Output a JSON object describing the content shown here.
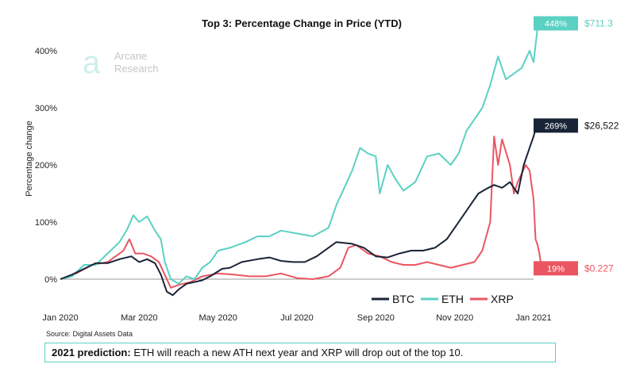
{
  "colors": {
    "btc": "#1a2437",
    "eth": "#5ad1c3",
    "xrp": "#eb5562",
    "axis": "#999999"
  },
  "logo": {
    "line1": "Arcane",
    "line2": "Research"
  },
  "source": "Source: Digital Assets Data",
  "prediction": {
    "bold": "2021 prediction:",
    "text": " ETH will reach a new ATH next year and XRP will drop out of the top 10."
  },
  "chart_data": {
    "type": "line",
    "title": "Top 3: Percentage Change in Price (YTD)",
    "ylabel": "Percentage change",
    "ylim": [
      -30,
      460
    ],
    "yticks": [
      0,
      100,
      200,
      300,
      400
    ],
    "ytick_labels": [
      "0%",
      "100%",
      "200%",
      "300%",
      "400%"
    ],
    "xlim": [
      0,
      12
    ],
    "xticks": [
      0,
      2,
      4,
      6,
      8,
      10,
      12
    ],
    "xtick_labels": [
      "Jan 2020",
      "Mar 2020",
      "May 2020",
      "Jul 2020",
      "Sep 2020",
      "Nov 2020",
      "Jan 2021"
    ],
    "legend": "bottom-right",
    "series": [
      {
        "name": "BTC",
        "key": "btc",
        "end_pct": "269%",
        "end_price": "$26,522",
        "end_value": 269,
        "points": [
          [
            0,
            0
          ],
          [
            0.3,
            8
          ],
          [
            0.6,
            18
          ],
          [
            0.9,
            28
          ],
          [
            1.2,
            28
          ],
          [
            1.5,
            35
          ],
          [
            1.8,
            40
          ],
          [
            2.0,
            30
          ],
          [
            2.2,
            35
          ],
          [
            2.4,
            28
          ],
          [
            2.55,
            8
          ],
          [
            2.7,
            -22
          ],
          [
            2.85,
            -28
          ],
          [
            3.0,
            -18
          ],
          [
            3.2,
            -8
          ],
          [
            3.4,
            -5
          ],
          [
            3.6,
            -2
          ],
          [
            3.8,
            5
          ],
          [
            4.1,
            18
          ],
          [
            4.3,
            20
          ],
          [
            4.6,
            30
          ],
          [
            5.0,
            35
          ],
          [
            5.3,
            38
          ],
          [
            5.6,
            32
          ],
          [
            5.9,
            30
          ],
          [
            6.2,
            30
          ],
          [
            6.5,
            40
          ],
          [
            6.8,
            55
          ],
          [
            7.0,
            65
          ],
          [
            7.4,
            62
          ],
          [
            7.7,
            55
          ],
          [
            8.0,
            40
          ],
          [
            8.3,
            38
          ],
          [
            8.6,
            45
          ],
          [
            8.9,
            50
          ],
          [
            9.2,
            50
          ],
          [
            9.5,
            55
          ],
          [
            9.8,
            70
          ],
          [
            10.0,
            90
          ],
          [
            10.2,
            110
          ],
          [
            10.4,
            130
          ],
          [
            10.6,
            150
          ],
          [
            10.8,
            158
          ],
          [
            11.0,
            165
          ],
          [
            11.2,
            160
          ],
          [
            11.4,
            170
          ],
          [
            11.6,
            150
          ],
          [
            11.75,
            200
          ],
          [
            11.9,
            230
          ],
          [
            12.0,
            250
          ],
          [
            12.1,
            275
          ],
          [
            12.2,
            269
          ]
        ]
      },
      {
        "name": "ETH",
        "key": "eth",
        "end_pct": "448%",
        "end_price": "$711.3",
        "end_value": 448,
        "points": [
          [
            0,
            0
          ],
          [
            0.3,
            5
          ],
          [
            0.6,
            25
          ],
          [
            0.9,
            25
          ],
          [
            1.2,
            45
          ],
          [
            1.5,
            65
          ],
          [
            1.7,
            88
          ],
          [
            1.85,
            112
          ],
          [
            2.0,
            100
          ],
          [
            2.2,
            110
          ],
          [
            2.4,
            85
          ],
          [
            2.55,
            70
          ],
          [
            2.65,
            30
          ],
          [
            2.8,
            0
          ],
          [
            3.0,
            -8
          ],
          [
            3.2,
            5
          ],
          [
            3.4,
            0
          ],
          [
            3.6,
            20
          ],
          [
            3.8,
            30
          ],
          [
            4.0,
            50
          ],
          [
            4.3,
            55
          ],
          [
            4.7,
            65
          ],
          [
            5.0,
            75
          ],
          [
            5.3,
            75
          ],
          [
            5.6,
            85
          ],
          [
            6.0,
            80
          ],
          [
            6.4,
            75
          ],
          [
            6.8,
            90
          ],
          [
            7.0,
            130
          ],
          [
            7.2,
            160
          ],
          [
            7.4,
            190
          ],
          [
            7.6,
            230
          ],
          [
            7.8,
            220
          ],
          [
            8.0,
            215
          ],
          [
            8.1,
            150
          ],
          [
            8.3,
            200
          ],
          [
            8.5,
            175
          ],
          [
            8.7,
            155
          ],
          [
            9.0,
            170
          ],
          [
            9.3,
            215
          ],
          [
            9.6,
            220
          ],
          [
            9.9,
            200
          ],
          [
            10.1,
            220
          ],
          [
            10.3,
            260
          ],
          [
            10.5,
            280
          ],
          [
            10.7,
            300
          ],
          [
            10.9,
            340
          ],
          [
            11.1,
            390
          ],
          [
            11.3,
            350
          ],
          [
            11.5,
            360
          ],
          [
            11.7,
            370
          ],
          [
            11.9,
            400
          ],
          [
            12.0,
            380
          ],
          [
            12.1,
            440
          ],
          [
            12.2,
            448
          ]
        ]
      },
      {
        "name": "XRP",
        "key": "xrp",
        "end_pct": "19%",
        "end_price": "$0.227",
        "end_value": 19,
        "points": [
          [
            0,
            0
          ],
          [
            0.4,
            10
          ],
          [
            0.8,
            25
          ],
          [
            1.2,
            30
          ],
          [
            1.6,
            50
          ],
          [
            1.75,
            70
          ],
          [
            1.9,
            45
          ],
          [
            2.1,
            45
          ],
          [
            2.3,
            40
          ],
          [
            2.5,
            30
          ],
          [
            2.6,
            15
          ],
          [
            2.8,
            -15
          ],
          [
            3.0,
            -10
          ],
          [
            3.3,
            -5
          ],
          [
            3.6,
            5
          ],
          [
            4.0,
            10
          ],
          [
            4.4,
            8
          ],
          [
            4.8,
            5
          ],
          [
            5.2,
            5
          ],
          [
            5.6,
            10
          ],
          [
            6.0,
            2
          ],
          [
            6.4,
            0
          ],
          [
            6.8,
            5
          ],
          [
            7.1,
            20
          ],
          [
            7.3,
            55
          ],
          [
            7.5,
            60
          ],
          [
            7.8,
            45
          ],
          [
            8.1,
            40
          ],
          [
            8.4,
            30
          ],
          [
            8.7,
            25
          ],
          [
            9.0,
            25
          ],
          [
            9.3,
            30
          ],
          [
            9.6,
            25
          ],
          [
            9.9,
            20
          ],
          [
            10.2,
            25
          ],
          [
            10.5,
            30
          ],
          [
            10.7,
            50
          ],
          [
            10.9,
            100
          ],
          [
            11.0,
            250
          ],
          [
            11.1,
            200
          ],
          [
            11.2,
            245
          ],
          [
            11.4,
            200
          ],
          [
            11.5,
            150
          ],
          [
            11.6,
            170
          ],
          [
            11.8,
            200
          ],
          [
            11.9,
            190
          ],
          [
            12.0,
            140
          ],
          [
            12.05,
            70
          ],
          [
            12.1,
            60
          ],
          [
            12.15,
            45
          ],
          [
            12.2,
            19
          ]
        ]
      }
    ]
  }
}
